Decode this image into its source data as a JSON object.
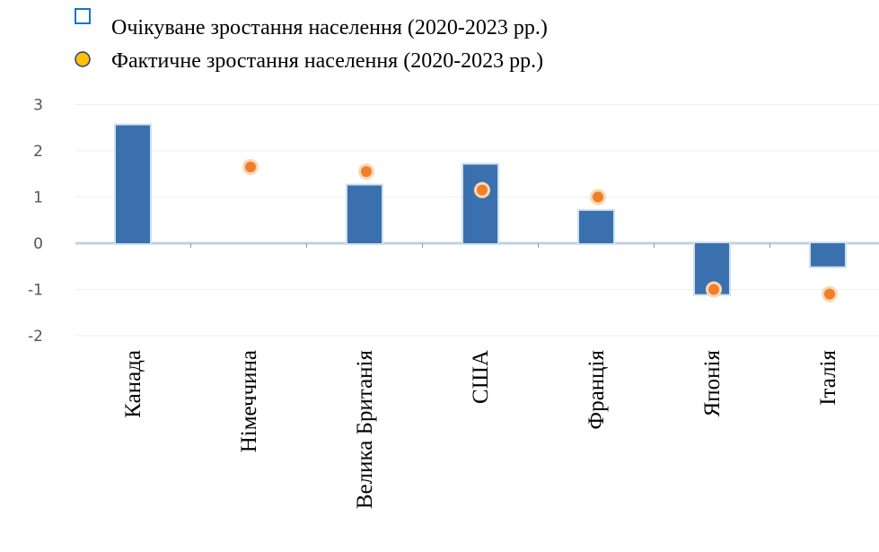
{
  "chart_data": {
    "type": "bar",
    "categories": [
      "Канада",
      "Німеччина",
      "Велика Британія",
      "США",
      "Франція",
      "Японія",
      "Італія"
    ],
    "series": [
      {
        "name": "Очікуване зростання населення (2020-2023 рр.)",
        "kind": "bar",
        "color": "#3a70ad",
        "values": [
          2.55,
          null,
          1.25,
          1.7,
          0.7,
          -1.1,
          -0.5
        ]
      },
      {
        "name": "Фактичне зростання населення (2020-2023 рр.)",
        "kind": "point",
        "color": "#f07f2a",
        "values": [
          null,
          1.65,
          1.55,
          1.15,
          1.0,
          -1.0,
          -1.1
        ]
      }
    ],
    "y_ticks": [
      "3",
      "2",
      "1",
      "0",
      "-1",
      "-2"
    ],
    "ylim": [
      -2,
      3
    ],
    "legend": {
      "position": "top-left",
      "items": [
        {
          "label": "Очікуване зростання населення (2020-2023 рр.)",
          "marker": "square",
          "color": "#1a73c8"
        },
        {
          "label": "Фактичне зростання населення (2020-2023 рр.)",
          "marker": "circle",
          "color": "#ffc000"
        }
      ]
    },
    "grid": true,
    "zero_line_color": "#bcd3e6",
    "grid_color": "#eeeeee"
  }
}
